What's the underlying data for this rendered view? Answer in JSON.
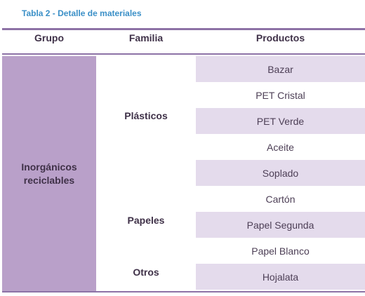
{
  "caption": "Tabla 2 - Detalle de materiales",
  "headers": {
    "grupo": "Grupo",
    "familia": "Familia",
    "productos": "Productos"
  },
  "group": {
    "line1": "Inorgánicos",
    "line2": "reciclables"
  },
  "familias": [
    "Plásticos",
    "Papeles",
    "Otros"
  ],
  "productos": [
    "Bazar",
    "PET Cristal",
    "PET Verde",
    "Aceite",
    "Soplado",
    "Cartón",
    "Papel Segunda",
    "Papel Blanco",
    "Hojalata"
  ],
  "colors": {
    "rule": "#8d72a6",
    "group_fill": "#b9a0c9",
    "row_shade": "#e4dbec",
    "caption": "#3a8fc7"
  }
}
